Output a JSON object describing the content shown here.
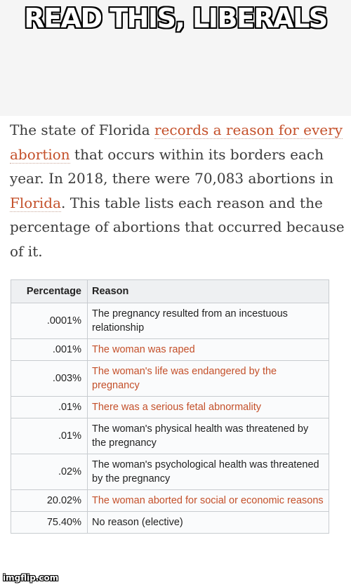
{
  "meme": {
    "caption": "READ THIS, LIBERALS"
  },
  "paragraph": {
    "p1": "The state of Florida ",
    "link1": "records a reason for every abortion",
    "p2": " that occurs within its borders each year. In 2018, there were 70,083 abortions in ",
    "link2": "Florida",
    "p3": ". This table lists each reason and the percentage of abortions that occurred because of it."
  },
  "table": {
    "headers": {
      "percentage": "Percentage",
      "reason": "Reason"
    },
    "rows": [
      {
        "percentage": ".0001%",
        "reason": "The pregnancy resulted from an incestuous relationship"
      },
      {
        "percentage": ".001%",
        "reason": "The woman was raped"
      },
      {
        "percentage": ".003%",
        "reason": "The woman's life was endangered by the pregnancy"
      },
      {
        "percentage": ".01%",
        "reason": "There was a serious fetal abnormality"
      },
      {
        "percentage": ".01%",
        "reason": "The woman's physical health was threatened by the pregnancy"
      },
      {
        "percentage": ".02%",
        "reason": "The woman's psychological health was threatened by the pregnancy"
      },
      {
        "percentage": "20.02%",
        "reason": "The woman aborted for social or economic reasons"
      },
      {
        "percentage": "75.40%",
        "reason": "No reason (elective)"
      }
    ]
  },
  "colors": {
    "link": "#c4502a",
    "text": "#3b3b3b",
    "table_header_bg": "#eef0f2",
    "table_border": "#c8ccd0"
  },
  "watermark": "imgflip.com"
}
